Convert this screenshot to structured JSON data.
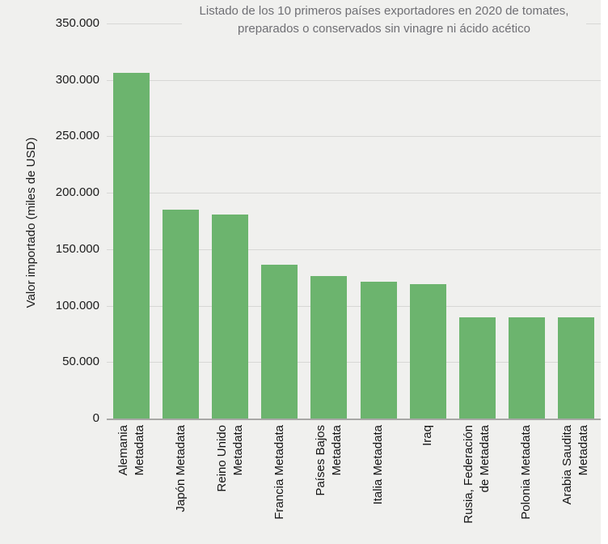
{
  "title": {
    "lines": [
      "Listado de los 10 primeros países exportadores en 2020 de tomates,",
      "preparados o conservados sin vinagre ni ácido acético"
    ]
  },
  "y_axis": {
    "label": "Valor importado (miles de USD)"
  },
  "colors": {
    "background": "#f0f0ee",
    "bar": "#6cb46e",
    "gridline": "#d7d7d5",
    "axis": "#a8a8a6",
    "title_text": "#6f6f74",
    "tick_text": "#1b1b1b"
  },
  "chart_data": {
    "type": "bar",
    "title": "Listado de los 10 primeros países exportadores en 2020 de tomates, preparados o conservados sin vinagre ni ácido acético",
    "xlabel": "",
    "ylabel": "Valor importado (miles de USD)",
    "ylim": [
      0,
      350000
    ],
    "grid": true,
    "legend": "none",
    "bar_color": "#6cb46e",
    "categories": [
      "Alemania Metadata",
      "Japón Metadata",
      "Reino Unido Metadata",
      "Francia Metadata",
      "Países Bajos Metadata",
      "Italia Metadata",
      "Iraq",
      "Rusia, Federación de Metadata",
      "Polonia Metadata",
      "Arabia Saudita Metadata"
    ],
    "category_lines": [
      [
        "Alemania",
        "Metadata"
      ],
      [
        "Japón Metadata"
      ],
      [
        "Reino Unido",
        "Metadata"
      ],
      [
        "Francia Metadata"
      ],
      [
        "Países Bajos",
        "Metadata"
      ],
      [
        "Italia Metadata"
      ],
      [
        "Iraq"
      ],
      [
        "Rusia, Federación",
        "de Metadata"
      ],
      [
        "Polonia Metadata"
      ],
      [
        "Arabia Saudita",
        "Metadata"
      ]
    ],
    "values": [
      306000,
      185000,
      181000,
      136000,
      126000,
      121000,
      119000,
      90000,
      90000,
      90000
    ],
    "ytick_values": [
      0,
      50000,
      100000,
      150000,
      200000,
      250000,
      300000,
      350000
    ],
    "ytick_labels": [
      "0",
      "50.000",
      "100.000",
      "150.000",
      "200.000",
      "250.000",
      "300.000",
      "350.000"
    ]
  }
}
